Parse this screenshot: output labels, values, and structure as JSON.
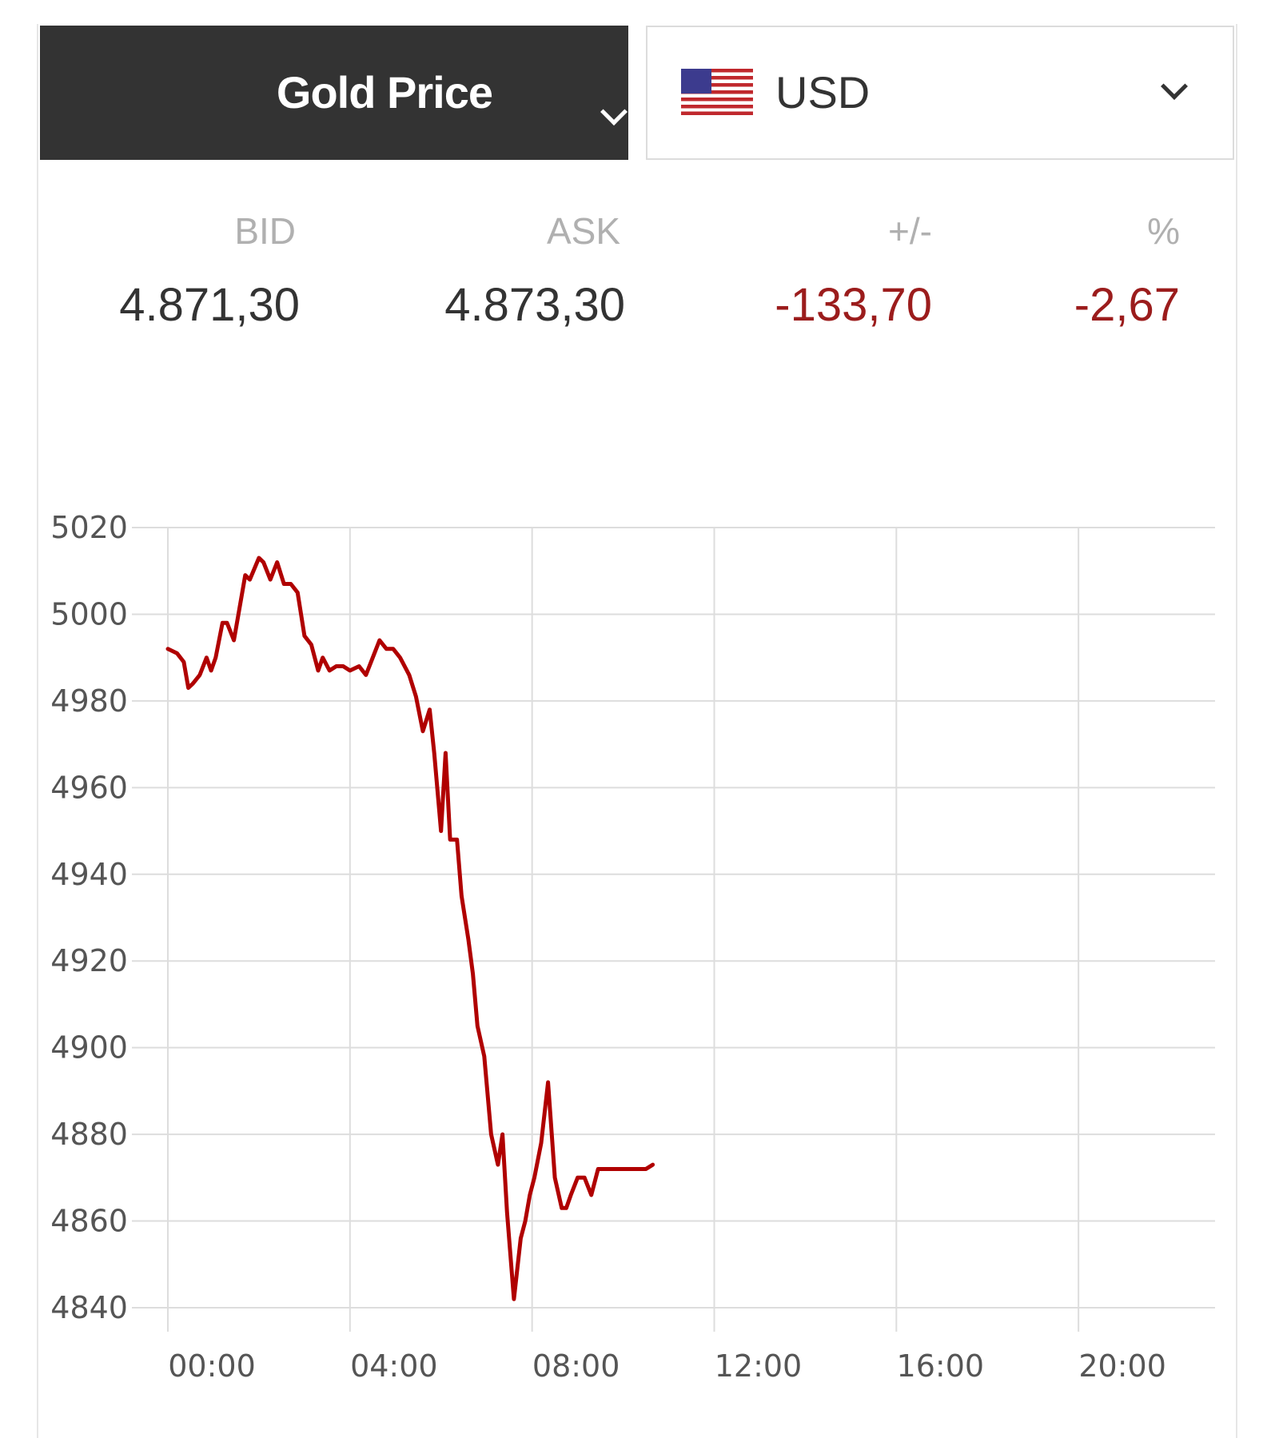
{
  "selector": {
    "metal": "Gold Price",
    "currency": "USD",
    "accent_dark": "#333333"
  },
  "quote": {
    "bid_label": "BID",
    "ask_label": "ASK",
    "change_label": "+/-",
    "percent_label": "%",
    "bid": "4.871,30",
    "ask": "4.873,30",
    "change": "-133,70",
    "percent": "-2,67",
    "negative_color": "#9b1c1c"
  },
  "chart_data": {
    "type": "line",
    "xlabel": "",
    "ylabel": "",
    "grid": true,
    "xlim": [
      0,
      23
    ],
    "ylim": [
      4840,
      5020
    ],
    "x_ticks": [
      {
        "value": 0,
        "label": "00:00"
      },
      {
        "value": 4,
        "label": "04:00"
      },
      {
        "value": 8,
        "label": "08:00"
      },
      {
        "value": 12,
        "label": "12:00"
      },
      {
        "value": 16,
        "label": "16:00"
      },
      {
        "value": 20,
        "label": "20:00"
      }
    ],
    "y_ticks": [
      5020,
      5000,
      4980,
      4960,
      4940,
      4920,
      4900,
      4880,
      4860,
      4840
    ],
    "line_color": "#b00000",
    "series": [
      {
        "x": [
          0.0,
          0.2,
          0.35,
          0.45,
          0.55,
          0.7,
          0.85,
          0.95,
          1.05,
          1.2,
          1.3,
          1.45,
          1.55,
          1.7,
          1.8,
          2.0,
          2.1,
          2.25,
          2.4,
          2.55,
          2.7,
          2.85,
          3.0,
          3.15,
          3.3,
          3.4,
          3.55,
          3.7,
          3.85,
          4.0,
          4.2,
          4.35,
          4.5,
          4.65,
          4.8,
          4.95,
          5.1,
          5.3,
          5.45,
          5.6,
          5.75,
          5.85,
          6.0,
          6.1,
          6.2,
          6.35,
          6.45,
          6.6,
          6.7,
          6.8,
          6.95,
          7.1,
          7.25,
          7.35,
          7.45,
          7.6,
          7.75,
          7.85,
          7.95,
          8.05,
          8.2,
          8.35,
          8.5,
          8.65,
          8.75,
          8.85,
          9.0,
          9.15,
          9.3,
          9.45,
          9.55,
          9.65,
          9.8,
          9.95,
          10.1,
          10.25,
          10.4,
          10.5,
          10.65
        ],
        "y": [
          4992,
          4991,
          4989,
          4983,
          4984,
          4986,
          4990,
          4987,
          4990,
          4998,
          4998,
          4994,
          5000,
          5009,
          5008,
          5013,
          5012,
          5008,
          5012,
          5007,
          5007,
          5005,
          4995,
          4993,
          4987,
          4990,
          4987,
          4988,
          4988,
          4987,
          4988,
          4986,
          4990,
          4994,
          4992,
          4992,
          4990,
          4986,
          4981,
          4973,
          4978,
          4968,
          4950,
          4968,
          4948,
          4948,
          4935,
          4925,
          4917,
          4905,
          4898,
          4880,
          4873,
          4880,
          4862,
          4842,
          4856,
          4860,
          4866,
          4870,
          4878,
          4892,
          4870,
          4863,
          4863,
          4866,
          4870,
          4870,
          4866,
          4872,
          4872,
          4872,
          4872,
          4872,
          4872,
          4872,
          4872,
          4872,
          4873
        ]
      }
    ]
  }
}
